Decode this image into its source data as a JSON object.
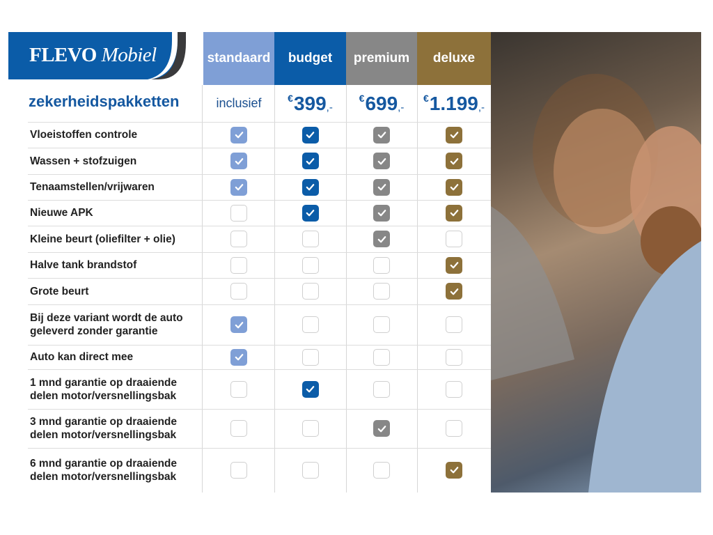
{
  "brand": {
    "name_part1": "FLEVO",
    "name_part2": "Mobiel"
  },
  "title": "zekerheidspakketten",
  "colors": {
    "standaard": "#7f9fd6",
    "budget": "#0b5ca8",
    "premium": "#878787",
    "deluxe": "#8d713a",
    "title": "#1558a0"
  },
  "packages": [
    {
      "name": "standaard",
      "price": "inclusief"
    },
    {
      "name": "budget",
      "currency": "€",
      "price": "399",
      "suffix": ",-"
    },
    {
      "name": "premium",
      "currency": "€",
      "price": "699",
      "suffix": ",-"
    },
    {
      "name": "deluxe",
      "currency": "€",
      "price": "1.199",
      "suffix": ",-"
    }
  ],
  "features": [
    {
      "label": "Vloeistoffen controle",
      "checks": [
        true,
        true,
        true,
        true
      ]
    },
    {
      "label": "Wassen + stofzuigen",
      "checks": [
        true,
        true,
        true,
        true
      ]
    },
    {
      "label": "Tenaamstellen/vrijwaren",
      "checks": [
        true,
        true,
        true,
        true
      ]
    },
    {
      "label": "Nieuwe APK",
      "checks": [
        false,
        true,
        true,
        true
      ]
    },
    {
      "label": "Kleine beurt (oliefilter + olie)",
      "checks": [
        false,
        false,
        true,
        false
      ]
    },
    {
      "label": "Halve tank brandstof",
      "checks": [
        false,
        false,
        false,
        true
      ]
    },
    {
      "label": "Grote beurt",
      "checks": [
        false,
        false,
        false,
        true
      ]
    },
    {
      "label": "Bij deze variant wordt de auto geleverd zonder garantie",
      "checks": [
        true,
        false,
        false,
        false
      ]
    },
    {
      "label": "Auto kan direct mee",
      "checks": [
        true,
        false,
        false,
        false
      ]
    },
    {
      "label": "1 mnd garantie op draaiende delen motor/versnellingsbak",
      "checks": [
        false,
        true,
        false,
        false
      ]
    },
    {
      "label": "3 mnd garantie op draaiende delen motor/versnellingsbak",
      "checks": [
        false,
        false,
        true,
        false
      ]
    },
    {
      "label": "6 mnd garantie op draaiende delen motor/versnellingsbak",
      "checks": [
        false,
        false,
        false,
        true
      ]
    }
  ],
  "icons": {
    "checked": "checkbox-checked-icon",
    "unchecked": "checkbox-empty-icon"
  }
}
